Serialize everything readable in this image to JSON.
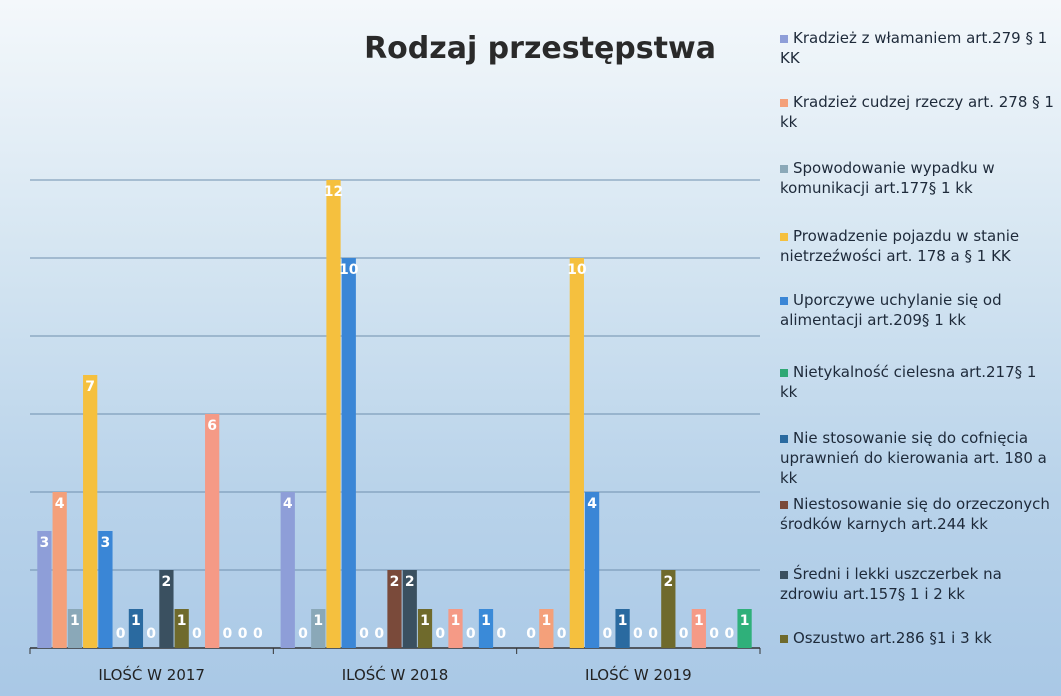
{
  "chart_data": {
    "type": "bar",
    "title": "Rodzaj przestępstwa",
    "categories": [
      "ILOŚĆ W 2017",
      "ILOŚĆ W 2018",
      "ILOŚĆ W 2019"
    ],
    "ylim": [
      0,
      12
    ],
    "yticks": [
      0,
      2,
      4,
      6,
      8,
      10,
      12
    ],
    "grid": true,
    "series": [
      {
        "name": "Kradzież z włamaniem art.279 § 1 KK",
        "color": "#8e9ed8",
        "values": [
          3,
          4,
          0
        ]
      },
      {
        "name": "Kradzież cudzej rzeczy art. 278 § 1 kk",
        "color": "#f4a07a",
        "values": [
          4,
          0,
          1
        ]
      },
      {
        "name": "Spowodowanie wypadku w komunikacji art.177§ 1 kk",
        "color": "#8aa8b8",
        "values": [
          1,
          1,
          0
        ]
      },
      {
        "name": "Prowadzenie pojazdu w stanie nietrzeźwości art. 178 a § 1 KK",
        "color": "#f5c03e",
        "values": [
          7,
          12,
          10
        ]
      },
      {
        "name": "Uporczywe uchylanie się od alimentacji art.209§ 1 kk",
        "color": "#3a86d6",
        "values": [
          3,
          10,
          4
        ]
      },
      {
        "name": "Nietykalność cielesna art.217§ 1 kk",
        "color": "#2fa874",
        "values": [
          0,
          0,
          0
        ]
      },
      {
        "name": "Nie stosowanie się do cofnięcia uprawnień do kierowania art. 180 a kk",
        "color": "#2a6aa0",
        "values": [
          1,
          0,
          1
        ]
      },
      {
        "name": "Niestosowanie się do orzeczonych środków karnych art.244 kk",
        "color": "#7a4a3a",
        "values": [
          0,
          2,
          0
        ]
      },
      {
        "name": "Średni i lekki uszczerbek na zdrowiu art.157§ 1 i 2 kk",
        "color": "#3a5060",
        "values": [
          2,
          2,
          0
        ]
      },
      {
        "name": "Oszustwo art.286 §1 i 3 kk",
        "color": "#6f6a2c",
        "values": [
          1,
          1,
          2
        ]
      },
      {
        "color": "#7fb0e8",
        "values": [
          0,
          0,
          0
        ]
      },
      {
        "color": "#f59a86",
        "values": [
          6,
          1,
          1
        ]
      },
      {
        "color": "#9cb0c4",
        "values": [
          0,
          0,
          0
        ]
      },
      {
        "color": "#3a8ad8",
        "values": [
          0,
          1,
          0
        ]
      },
      {
        "color": "#2fb07a",
        "values": [
          0,
          0,
          1
        ]
      }
    ]
  }
}
